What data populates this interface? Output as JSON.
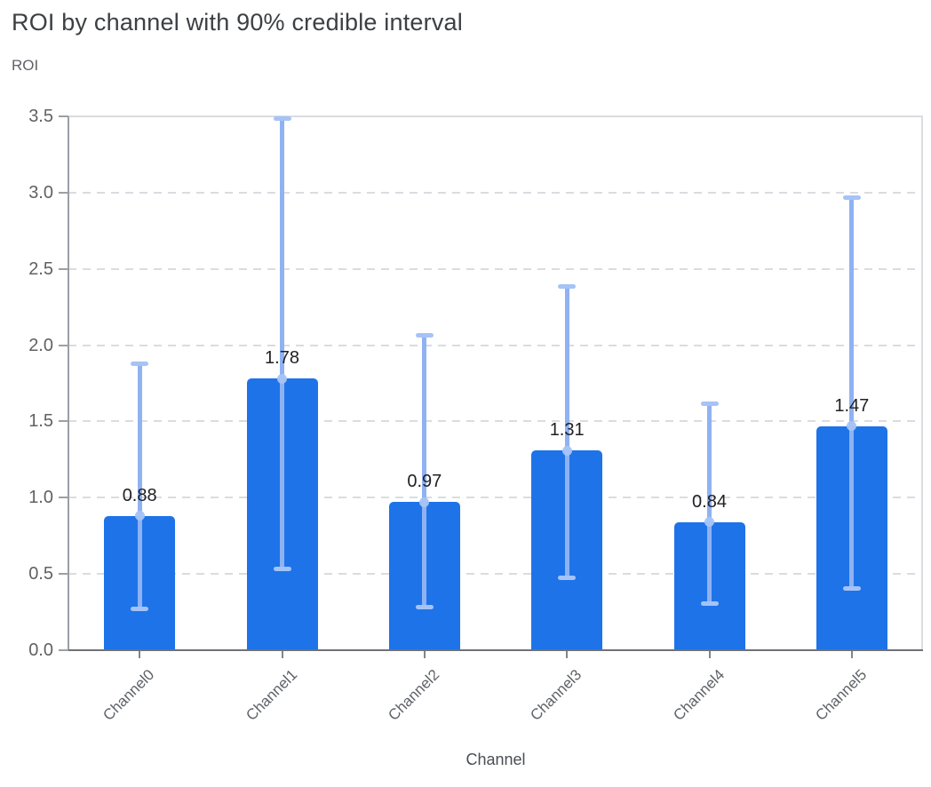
{
  "chart_data": {
    "type": "bar",
    "title": "ROI by channel with 90% credible interval",
    "ylabel": "ROI",
    "xlabel": "Channel",
    "categories": [
      "Channel0",
      "Channel1",
      "Channel2",
      "Channel3",
      "Channel4",
      "Channel5"
    ],
    "values": [
      0.88,
      1.78,
      0.97,
      1.31,
      0.84,
      1.47
    ],
    "value_labels": [
      "0.88",
      "1.78",
      "0.97",
      "1.31",
      "0.84",
      "1.47"
    ],
    "error_low": [
      0.27,
      0.53,
      0.28,
      0.47,
      0.3,
      0.4
    ],
    "error_high": [
      1.88,
      3.49,
      2.07,
      2.39,
      1.62,
      2.97
    ],
    "interval_label": "90% credible interval",
    "ylim": [
      0,
      3.5
    ],
    "ytick_labels": [
      "0.0",
      "0.5",
      "1.0",
      "1.5",
      "2.0",
      "2.5",
      "3.0",
      "3.5"
    ],
    "grid": "horizontal-dashed",
    "legend_position": "none",
    "colors": {
      "bar": "#1E73E8",
      "error_line": "#8FB2F2",
      "error_cap": "#A5C3F7",
      "marker": "#A8C4F6",
      "grid": "#DADCE0",
      "axis": "#9AA0A6",
      "baseline": "#6E7277",
      "value_label_text": "#202124",
      "tick_text": "#616161",
      "xtick_text": "#5F6368",
      "title_text": "#3C4043"
    }
  }
}
